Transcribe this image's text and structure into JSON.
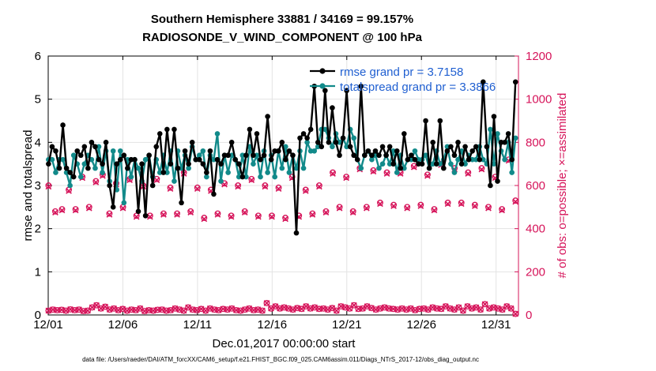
{
  "chart_data": {
    "type": "line",
    "title": [
      "Southern Hemisphere 33881 / 34169 = 99.157%",
      "RADIOSONDE_V_WIND_COMPONENT @ 100 hPa"
    ],
    "xlabel": "Dec.01,2017 00:00:00 start",
    "ylabel_left": "rmse and totalspread",
    "ylabel_right": "# of obs: o=possible; ×=assimilated",
    "xlim": [
      0,
      31.5
    ],
    "ylim_left": [
      0,
      6
    ],
    "ylim_right": [
      0,
      1200
    ],
    "x_ticks": [
      0,
      5,
      10,
      15,
      20,
      25,
      30
    ],
    "x_tick_labels": [
      "12/01",
      "12/06",
      "12/11",
      "12/16",
      "12/21",
      "12/26",
      "12/31"
    ],
    "y_ticks_left": [
      "0",
      "1",
      "2",
      "3",
      "4",
      "5",
      "6"
    ],
    "y_ticks_right": [
      "0",
      "200",
      "400",
      "600",
      "800",
      "1000",
      "1200"
    ],
    "grid": true,
    "legend": {
      "position": "top-right",
      "entries": [
        "rmse grand pr = 3.7158",
        "totalspread grand pr = 3.3866"
      ]
    },
    "colors": {
      "rmse": "#000000",
      "totalspread": "#128a8a",
      "obs": "#d6145a",
      "legend_text": "#1f5fd1"
    },
    "series": [
      {
        "name": "rmse",
        "axis": "left",
        "values": [
          3.5,
          3.9,
          3.8,
          3.4,
          4.4,
          3.4,
          3.3,
          3.2,
          3.8,
          3.7,
          3.9,
          3.4,
          4.0,
          3.9,
          3.6,
          3.5,
          4.0,
          3.0,
          2.5,
          3.5,
          3.6,
          3.7,
          3.4,
          3.6,
          3.6,
          2.4,
          3.5,
          2.3,
          3.7,
          3.0,
          3.9,
          4.2,
          3.3,
          4.3,
          3.5,
          4.3,
          3.4,
          2.6,
          3.8,
          3.5,
          4.0,
          3.6,
          3.6,
          3.5,
          3.3,
          3.8,
          2.8,
          3.6,
          3.5,
          3.7,
          3.7,
          4.0,
          3.6,
          3.5,
          3.2,
          3.7,
          4.3,
          3.7,
          4.2,
          3.6,
          3.7,
          4.6,
          3.6,
          3.8,
          3.8,
          4.0,
          3.6,
          3.8,
          3.7,
          1.9,
          4.1,
          4.2,
          4.1,
          4.3,
          5.3,
          4.0,
          3.9,
          5.2,
          4.0,
          4.8,
          4.0,
          3.7,
          4.1,
          5.2,
          3.9,
          3.7,
          3.6,
          5.3,
          3.7,
          3.8,
          3.7,
          3.8,
          3.7,
          3.9,
          3.7,
          3.9,
          3.5,
          3.8,
          3.4,
          4.2,
          3.6,
          3.7,
          3.6,
          3.5,
          3.5,
          4.5,
          3.4,
          4.0,
          3.5,
          4.5,
          3.4,
          3.8,
          3.9,
          3.7,
          4.0,
          3.5,
          3.9,
          3.6,
          3.8,
          3.9,
          3.6,
          5.4,
          3.9,
          3.0,
          4.6,
          3.1,
          4.0,
          4.0,
          4.2,
          3.6,
          5.4
        ]
      },
      {
        "name": "totalspread",
        "axis": "left",
        "values": [
          3.6,
          3.6,
          3.3,
          3.6,
          3.6,
          3.3,
          3.0,
          3.7,
          3.5,
          3.2,
          3.5,
          3.7,
          3.6,
          3.4,
          3.9,
          3.3,
          3.8,
          3.1,
          3.8,
          2.9,
          3.8,
          2.6,
          3.6,
          3.2,
          3.6,
          3.4,
          3.1,
          3.6,
          3.7,
          3.2,
          3.6,
          3.3,
          3.7,
          3.3,
          3.8,
          3.1,
          3.8,
          3.4,
          3.7,
          3.4,
          3.9,
          3.6,
          3.7,
          3.8,
          3.2,
          3.7,
          3.6,
          4.2,
          3.1,
          3.7,
          3.3,
          3.7,
          3.6,
          3.2,
          3.7,
          3.2,
          3.9,
          3.5,
          3.7,
          3.2,
          3.8,
          3.3,
          3.7,
          3.2,
          3.8,
          3.4,
          3.9,
          3.3,
          3.7,
          3.4,
          3.8,
          3.4,
          4.0,
          3.8,
          3.8,
          3.9,
          4.3,
          4.3,
          4.1,
          3.9,
          4.2,
          4.0,
          4.1,
          3.9,
          4.3,
          4.1,
          3.6,
          3.4,
          3.7,
          3.8,
          3.6,
          3.7,
          3.4,
          3.5,
          3.7,
          3.5,
          3.8,
          3.3,
          3.7,
          3.4,
          3.6,
          3.6,
          3.8,
          3.6,
          3.6,
          3.7,
          3.4,
          3.5,
          3.8,
          3.5,
          3.6,
          3.9,
          3.5,
          3.3,
          3.6,
          3.8,
          3.5,
          3.7,
          3.6,
          3.6,
          3.9,
          3.6,
          3.5,
          4.3,
          3.5,
          4.2,
          3.8,
          3.6,
          4.0,
          3.3,
          4.1
        ]
      },
      {
        "name": "obs possible (o)",
        "axis": "right",
        "marker": "o",
        "values": [
          600,
          480,
          490,
          580,
          490,
          640,
          500,
          620,
          650,
          470,
          610,
          500,
          630,
          460,
          600,
          460,
          630,
          470,
          590,
          470,
          660,
          480,
          590,
          450,
          580,
          470,
          610,
          460,
          600,
          480,
          630,
          460,
          600,
          460,
          590,
          450,
          640,
          460,
          580,
          470,
          600,
          480,
          660,
          500,
          640,
          480,
          680,
          500,
          670,
          520,
          660,
          510,
          660,
          500,
          690,
          510,
          650,
          490,
          700,
          520,
          680,
          520,
          660,
          510,
          680,
          500,
          640,
          490,
          720,
          530
        ]
      },
      {
        "name": "obs assimilated (x)",
        "axis": "right",
        "marker": "x",
        "values": [
          595,
          475,
          485,
          575,
          485,
          635,
          495,
          615,
          645,
          465,
          605,
          495,
          625,
          455,
          595,
          455,
          625,
          465,
          585,
          465,
          655,
          475,
          585,
          445,
          575,
          465,
          605,
          455,
          595,
          475,
          625,
          455,
          595,
          455,
          585,
          445,
          635,
          455,
          575,
          465,
          595,
          475,
          655,
          495,
          635,
          475,
          675,
          495,
          665,
          515,
          655,
          505,
          655,
          495,
          685,
          505,
          645,
          485,
          695,
          515,
          675,
          515,
          655,
          505,
          675,
          495,
          635,
          485,
          715,
          525
        ]
      },
      {
        "name": "obs low (o/x)",
        "axis": "right",
        "values": [
          20,
          25,
          22,
          24,
          20,
          26,
          22,
          25,
          18,
          20,
          35,
          45,
          30,
          38,
          25,
          30,
          22,
          28,
          20,
          25,
          22,
          30,
          18,
          22,
          20,
          24,
          25,
          20,
          22,
          30,
          25,
          20,
          35,
          25,
          22,
          28,
          20,
          30,
          25,
          22,
          28,
          25,
          30,
          22,
          20,
          25,
          30,
          22,
          25,
          20,
          55,
          30,
          40,
          30,
          35,
          30,
          25,
          32,
          28,
          40,
          30,
          35,
          28,
          30,
          25,
          32,
          20,
          40,
          35,
          30,
          45,
          28,
          30,
          40,
          32,
          25,
          30,
          35,
          30,
          28,
          25,
          30,
          25,
          30,
          22,
          28,
          30,
          25,
          35,
          30,
          28,
          40,
          30,
          25,
          35,
          20,
          40,
          30,
          35,
          25,
          50,
          30,
          35,
          30,
          25,
          40,
          30,
          5
        ]
      }
    ]
  },
  "footer": "data file: /Users/raeder/DAI/ATM_forcXX/CAM6_setup/f.e21.FHIST_BGC.f09_025.CAM6assim.011/Diags_NTrS_2017-12/obs_diag_output.nc"
}
